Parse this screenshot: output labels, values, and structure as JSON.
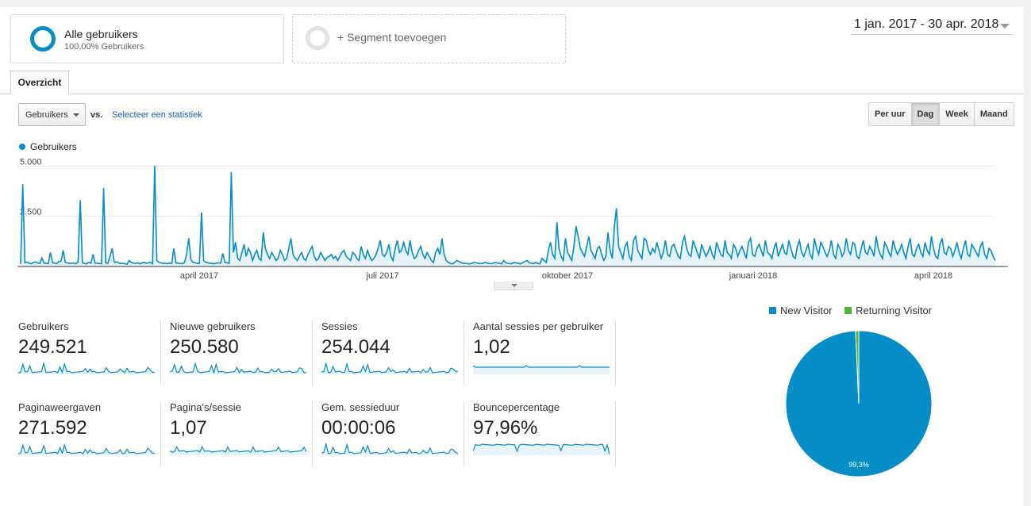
{
  "segments": [
    {
      "title": "Alle gebruikers",
      "subtitle": "100,00% Gebruikers"
    },
    {
      "title": "+ Segment toevoegen"
    }
  ],
  "date_range": "1 jan. 2017 - 30 apr. 2018",
  "tab": "Overzicht",
  "metric_select": "Gebruikers",
  "vs_label": "vs.",
  "select_stat_link": "Selecteer een statistiek",
  "granularity": {
    "options": [
      "Per uur",
      "Dag",
      "Week",
      "Maand"
    ],
    "active": "Dag"
  },
  "chart_legend": "Gebruikers",
  "colors": {
    "accent": "#058dc7",
    "returning": "#50b432",
    "fill": "#e6f3f9"
  },
  "chart_data": {
    "type": "area",
    "series": [
      {
        "name": "Gebruikers",
        "values": [
          120,
          4100,
          180,
          220,
          160,
          140,
          200,
          230,
          180,
          150,
          420,
          170,
          160,
          140,
          700,
          190,
          160,
          150,
          240,
          260,
          800,
          200,
          180,
          150,
          170,
          160,
          140,
          210,
          3300,
          180,
          150,
          140,
          200,
          160,
          600,
          170,
          160,
          150,
          140,
          3900,
          180,
          160,
          500,
          900,
          200,
          230,
          180,
          150,
          160,
          140,
          120,
          300,
          200,
          160,
          150,
          180,
          140,
          170,
          210,
          160,
          180,
          200,
          140,
          5000,
          300,
          200,
          180,
          150,
          160,
          140,
          170,
          150,
          900,
          180,
          160,
          150,
          140,
          200,
          600,
          1400,
          350,
          200,
          180,
          160,
          150,
          2700,
          300,
          200,
          180,
          160,
          150,
          140,
          170,
          180,
          160,
          650,
          200,
          180,
          150,
          4700,
          700,
          1200,
          400,
          300,
          700,
          1100,
          500,
          900,
          700,
          300,
          600,
          800,
          400,
          300,
          1700,
          900,
          600,
          400,
          700,
          500,
          300,
          400,
          800,
          600,
          300,
          400,
          900,
          1400,
          600,
          400,
          300,
          500,
          700,
          400,
          300,
          600,
          800,
          1000,
          500,
          300,
          400,
          700,
          500,
          300,
          450,
          500,
          600,
          400,
          500,
          300,
          500,
          700,
          800,
          500,
          400,
          300,
          700,
          600,
          400,
          300,
          1000,
          600,
          400,
          800,
          500,
          300,
          400,
          600,
          900,
          1300,
          600,
          500,
          700,
          1100,
          500,
          300,
          900,
          1300,
          700,
          800,
          1200,
          800,
          600,
          1300,
          700,
          400,
          500,
          800,
          1000,
          600,
          400,
          700,
          500,
          300,
          200,
          700,
          900,
          600,
          1400,
          600,
          300,
          200,
          150,
          140,
          200,
          300,
          250,
          200,
          150,
          160,
          140,
          130,
          150,
          200,
          180,
          160,
          140,
          150,
          200,
          180,
          150,
          140,
          160,
          200,
          180,
          150,
          140,
          300,
          180,
          160,
          140,
          150,
          200,
          170,
          160,
          130,
          200,
          250,
          300,
          180,
          160,
          140,
          200,
          150,
          130,
          400,
          300,
          200,
          800,
          1200,
          600,
          400,
          2200,
          900,
          500,
          300,
          1400,
          700,
          500,
          300,
          1000,
          2000,
          1500,
          900,
          700,
          500,
          1000,
          1500,
          800,
          600,
          400,
          900,
          1000,
          600,
          300,
          500,
          1700,
          800,
          400,
          2000,
          2900,
          1000,
          700,
          400,
          1000,
          1200,
          500,
          300,
          1300,
          1500,
          800,
          600,
          400,
          1400,
          1300,
          800,
          600,
          900,
          700,
          1200,
          800,
          400,
          700,
          1300,
          600,
          500,
          1000,
          1100,
          800,
          500,
          400,
          1200,
          1500,
          900,
          600,
          500,
          1300,
          1000,
          700,
          400,
          1100,
          800,
          500,
          700,
          1000,
          600,
          400,
          1200,
          900,
          600,
          500,
          1300,
          700,
          600,
          400,
          1100,
          900,
          500,
          800,
          1000,
          700,
          400,
          1200,
          1400,
          600,
          500,
          900,
          1100,
          800,
          500,
          1300,
          700,
          600,
          400,
          900,
          1200,
          500,
          800,
          1100,
          700,
          600,
          1300,
          900,
          500,
          400,
          1000,
          1300,
          700,
          500,
          800,
          1100,
          600,
          400,
          1400,
          900,
          600,
          1200,
          1000,
          700,
          500,
          800,
          1300,
          600,
          400,
          1100,
          900,
          500,
          700,
          1400,
          800,
          600,
          1200,
          1100,
          500,
          400,
          900,
          1300,
          700,
          600,
          1000,
          800,
          500,
          1500,
          900,
          600,
          400,
          1200,
          1000,
          700,
          500,
          1300,
          900,
          600,
          800,
          1100,
          700,
          400,
          1000,
          1400,
          600,
          500,
          900,
          1100,
          700,
          500,
          1200,
          800,
          600,
          1500,
          900,
          500,
          400,
          1100,
          1400,
          700,
          600,
          1000,
          900,
          500,
          800,
          1200,
          700,
          400,
          900,
          1300,
          600,
          500,
          1100,
          900,
          700,
          500,
          1000,
          1200,
          600,
          400,
          900,
          800,
          500,
          300
        ]
      }
    ],
    "x_tick_labels": [
      "april 2017",
      "juli 2017",
      "oktober 2017",
      "januari 2018",
      "april 2018"
    ],
    "y_tick_labels": [
      "5.000",
      "2.500"
    ],
    "ylim": [
      0,
      5000
    ],
    "grid": true
  },
  "metrics": [
    {
      "label": "Gebruikers",
      "value": "249.521",
      "spark": "spiky"
    },
    {
      "label": "Nieuwe gebruikers",
      "value": "250.580",
      "spark": "spiky"
    },
    {
      "label": "Sessies",
      "value": "254.044",
      "spark": "spiky"
    },
    {
      "label": "Aantal sessies per gebruiker",
      "value": "1,02",
      "spark": "flat"
    },
    {
      "label": "Paginaweergaven",
      "value": "271.592",
      "spark": "spiky"
    },
    {
      "label": "Pagina's/sessie",
      "value": "1,07",
      "spark": "lowspiky"
    },
    {
      "label": "Gem. sessieduur",
      "value": "00:00:06",
      "spark": "spiky"
    },
    {
      "label": "Bouncepercentage",
      "value": "97,96%",
      "spark": "high"
    }
  ],
  "pie": {
    "legend": [
      "New Visitor",
      "Returning Visitor"
    ],
    "slices": [
      {
        "name": "New Visitor",
        "value": 99.3
      },
      {
        "name": "Returning Visitor",
        "value": 0.7
      }
    ],
    "label": "99,3%"
  }
}
